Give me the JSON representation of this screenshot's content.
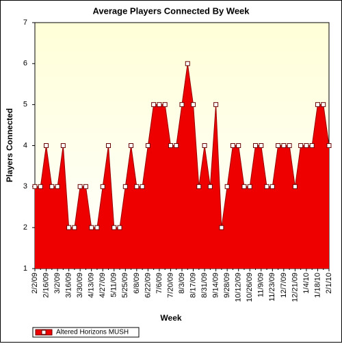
{
  "chart_data": {
    "type": "area",
    "title": "Average Players Connected By Week",
    "x_label": "Week",
    "y_label": "Players Connected",
    "categories": [
      "2/2/09",
      null,
      "2/16/09",
      null,
      "3/2/09",
      null,
      "3/16/09",
      null,
      "3/30/09",
      null,
      "4/13/09",
      null,
      "4/27/09",
      null,
      "5/11/09",
      null,
      "5/25/09",
      null,
      "6/8/09",
      null,
      "6/22/09",
      null,
      "7/6/09",
      null,
      "7/20/09",
      null,
      "8/3/09",
      null,
      "8/17/09",
      null,
      "8/31/09",
      null,
      "9/14/09",
      null,
      "9/28/09",
      null,
      "10/12/09",
      null,
      "10/26/09",
      null,
      "11/9/09",
      null,
      "11/23/09",
      null,
      "12/7/09",
      null,
      "12/21/09",
      null,
      "1/4/10",
      null,
      "1/18/10",
      null,
      "2/1/10"
    ],
    "series": [
      {
        "name": "Altered Horizons MUSH",
        "color": "#ee0000",
        "values": [
          3,
          3,
          4,
          3,
          3,
          4,
          2,
          2,
          3,
          3,
          2,
          2,
          3,
          4,
          2,
          2,
          3,
          4,
          3,
          3,
          4,
          5,
          5,
          5,
          4,
          4,
          5,
          6,
          5,
          3,
          4,
          3,
          5,
          2,
          3,
          4,
          4,
          3,
          3,
          4,
          4,
          3,
          3,
          4,
          4,
          4,
          3,
          4,
          4,
          4,
          5,
          5,
          4
        ]
      }
    ],
    "ylim": [
      1,
      7
    ],
    "yticks": [
      1,
      2,
      3,
      4,
      5,
      6,
      7
    ],
    "grid": false,
    "legend": "bottom-left",
    "markers": true
  }
}
